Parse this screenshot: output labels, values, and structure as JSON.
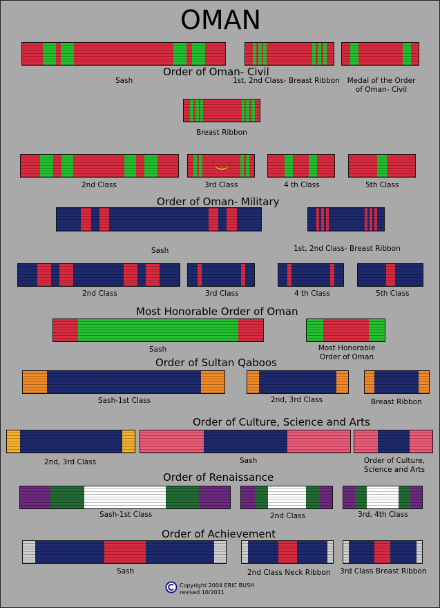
{
  "page_title": "OMAN",
  "colors": {
    "background": "#a9a9a9",
    "red": "#d92a3f",
    "green": "#23c12f",
    "navy": "#1d2a6e",
    "orange": "#f08a2a",
    "yellow": "#f5b12a",
    "pink": "#ea5b77",
    "purple": "#6b2a7e",
    "dark_green": "#236a35",
    "white": "#ffffff",
    "silver": "#cfcfcf",
    "crescent": "#f1e22a"
  },
  "sections": {
    "civil": {
      "heading": "Order of Oman- Civil",
      "sash": "Sash",
      "breast": "1st, 2nd Class- Breast Ribbon",
      "medal": "Medal of the Order\nof Oman- Civil",
      "breast_ribbon": "Breast Ribbon",
      "class2": "2nd Class",
      "class3": "3rd Class",
      "class4": "4 th Class",
      "class5": "5th Class"
    },
    "military": {
      "heading": "Order of Oman- Military",
      "sash": "Sash",
      "breast": "1st, 2nd Class- Breast Ribbon",
      "class2": "2nd Class",
      "class3": "3rd Class",
      "class4": "4 th Class",
      "class5": "5th Class"
    },
    "most_honorable": {
      "heading": "Most Honorable Order of Oman",
      "sash": "Sash",
      "ribbon": "Most  Honorable\nOrder of Oman"
    },
    "sultan_qaboos": {
      "heading": "Order of Sultan Qaboos",
      "sash": "Sash-1st Class",
      "class23": "2nd, 3rd Class",
      "breast": "Breast Ribbon"
    },
    "culture": {
      "heading": "Order of Culture, Science and Arts",
      "class23": "2nd, 3rd Class",
      "sash": "Sash",
      "ribbon": "Order of Culture,\nScience and Arts"
    },
    "renaissance": {
      "heading": "Order of Renaissance",
      "sash": "Sash-1st Class",
      "class2": "2nd Class",
      "class34": "3rd, 4th Class"
    },
    "achievement": {
      "heading": "Order of Achievement",
      "sash": "Sash",
      "class2": "2nd Class Neck Ribbon",
      "class3": "3rd Class Breast Ribbon"
    }
  },
  "copyright": {
    "line1": "Copyright 2004  ERIC BUSH",
    "line2": "revised 10/2011"
  }
}
